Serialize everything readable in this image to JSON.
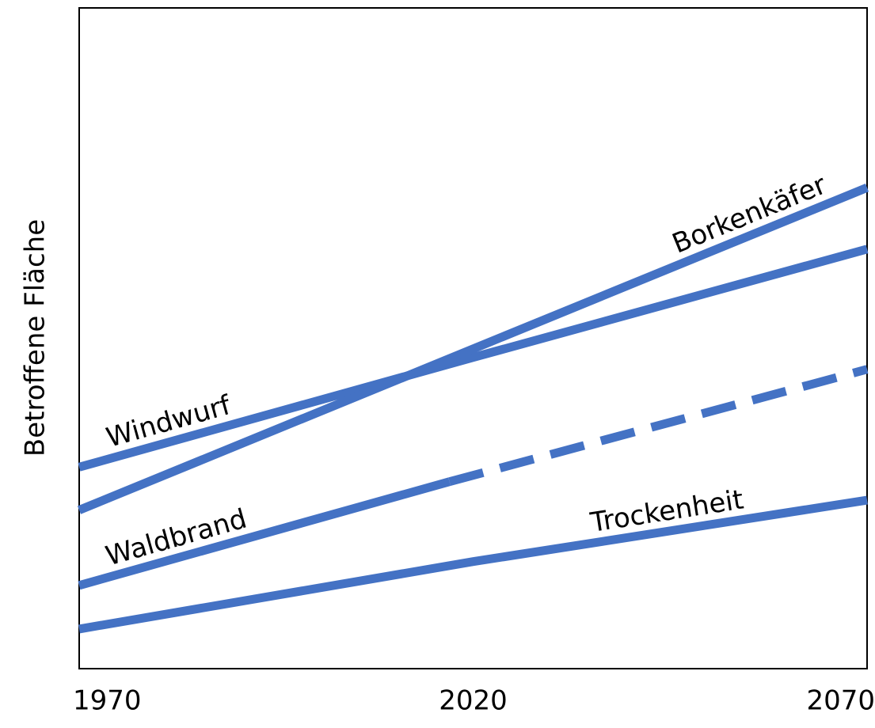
{
  "chart_data": {
    "type": "line",
    "y_label": "Betroffene Fläche",
    "x": [
      1970,
      2020,
      2070
    ],
    "xlim": [
      1970,
      2070
    ],
    "xticks": [
      1970,
      2020,
      2070
    ],
    "ylim": [
      0,
      100
    ],
    "series": [
      {
        "name": "Windwurf",
        "color": "#4472c4",
        "x": [
          1970,
          2020,
          2070
        ],
        "values": [
          30.5,
          47.1,
          63.5
        ]
      },
      {
        "name": "Borkenkäfer",
        "color": "#4472c4",
        "x": [
          1970,
          2020,
          2070
        ],
        "values": [
          24.0,
          48.4,
          72.8
        ]
      },
      {
        "name": "Waldbrand",
        "color": "#4472c4",
        "x": [
          1970,
          2017,
          2070
        ],
        "values": [
          12.6,
          28.3,
          45.3
        ],
        "dashed_from": 1
      },
      {
        "name": "Trockenheit",
        "color": "#4472c4",
        "x": [
          1970,
          2020,
          2070
        ],
        "values": [
          6.0,
          16.2,
          25.5
        ]
      }
    ]
  }
}
